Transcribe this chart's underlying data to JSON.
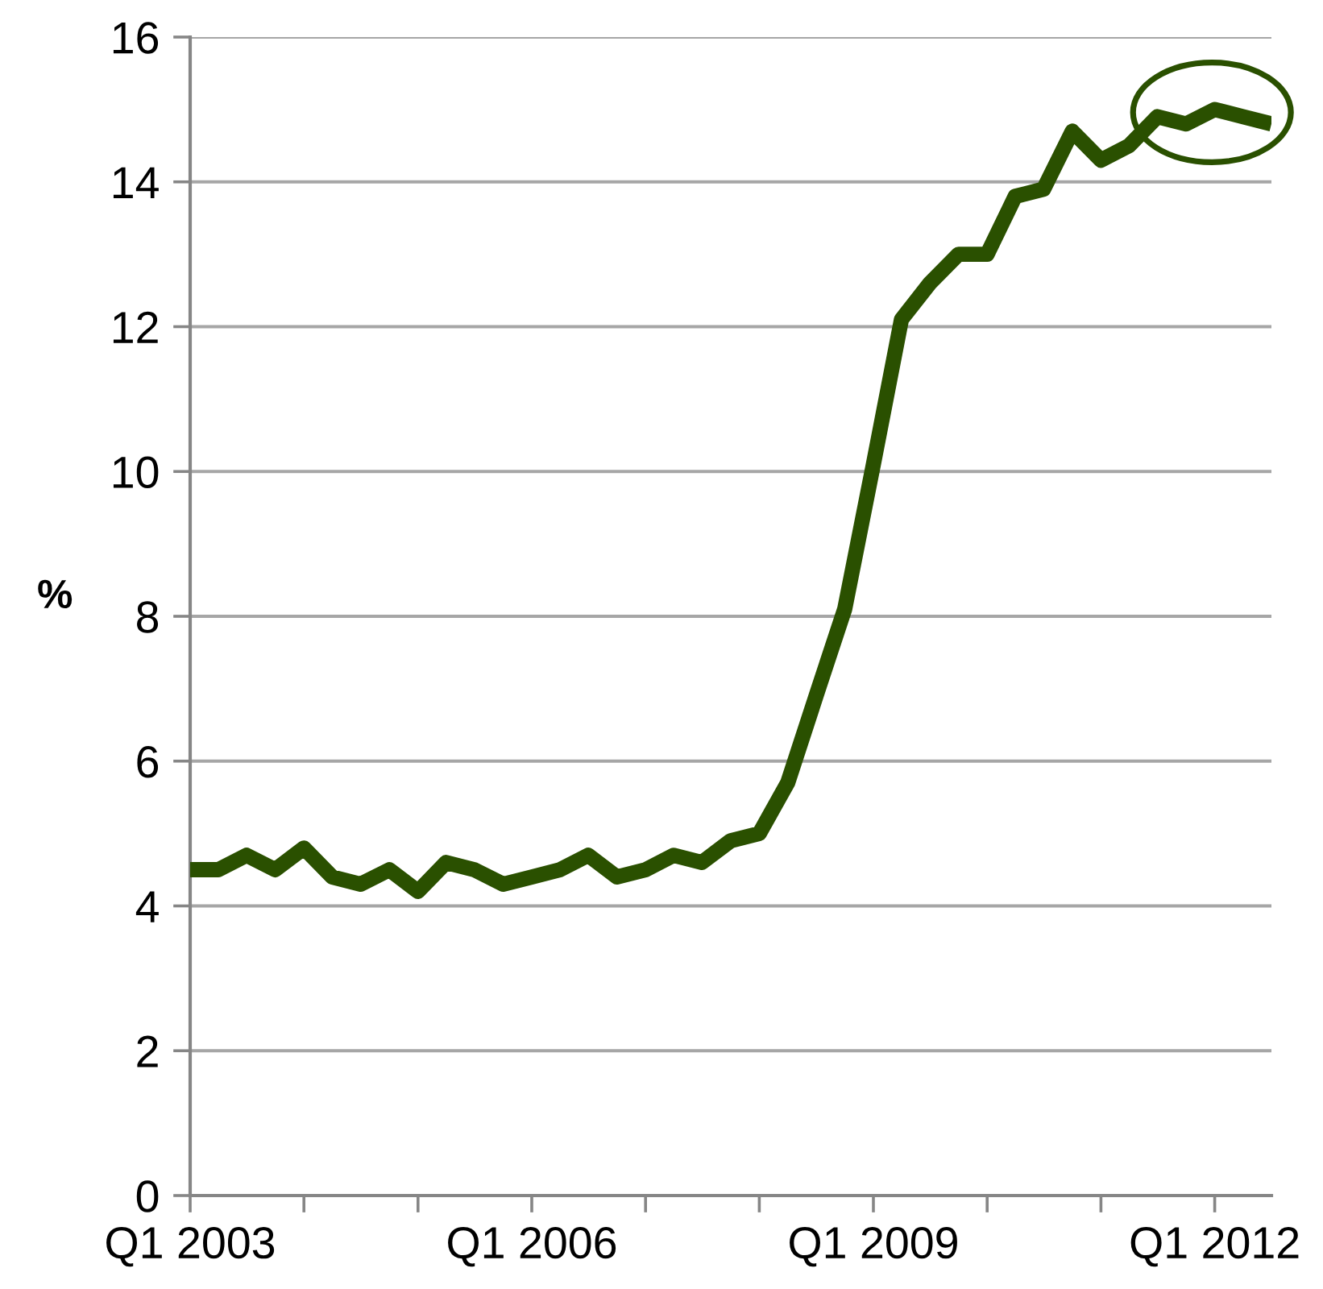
{
  "chart_data": {
    "type": "line",
    "ylabel": "%",
    "x": [
      "2003-01",
      "2003-04",
      "2003-07",
      "2003-10",
      "2004-01",
      "2004-04",
      "2004-07",
      "2004-10",
      "2005-01",
      "2005-04",
      "2005-07",
      "2005-10",
      "2006-01",
      "2006-04",
      "2006-07",
      "2006-10",
      "2007-01",
      "2007-04",
      "2007-07",
      "2007-10",
      "2008-01",
      "2008-04",
      "2008-07",
      "2008-10",
      "2009-01",
      "2009-04",
      "2009-07",
      "2009-10",
      "2010-01",
      "2010-04",
      "2010-07",
      "2010-10",
      "2011-01",
      "2011-04",
      "2011-07",
      "2011-10",
      "2012-01",
      "2012-04",
      "2012-07"
    ],
    "series": [
      {
        "color": "#2a5000",
        "values": [
          4.5,
          4.5,
          4.7,
          4.5,
          4.8,
          4.4,
          4.3,
          4.5,
          4.2,
          4.6,
          4.5,
          4.3,
          4.4,
          4.5,
          4.7,
          4.4,
          4.5,
          4.7,
          4.6,
          4.9,
          5.0,
          5.7,
          6.9,
          8.1,
          10.1,
          12.1,
          12.6,
          13.0,
          13.0,
          13.8,
          13.9,
          14.7,
          14.3,
          14.5,
          14.9,
          14.8,
          15.0,
          14.9,
          14.8
        ]
      }
    ],
    "xlim": [
      "2003-01",
      "2012-07"
    ],
    "xticks": [
      {
        "value": "2003-01",
        "label": "Q1 2003"
      },
      {
        "value": "2004-01",
        "label": null
      },
      {
        "value": "2005-01",
        "label": null
      },
      {
        "value": "2006-01",
        "label": "Q1 2006"
      },
      {
        "value": "2007-01",
        "label": null
      },
      {
        "value": "2008-01",
        "label": null
      },
      {
        "value": "2009-01",
        "label": "Q1 2009"
      },
      {
        "value": "2010-01",
        "label": null
      },
      {
        "value": "2011-01",
        "label": null
      },
      {
        "value": "2012-01",
        "label": "Q1 2012"
      }
    ],
    "ylim": [
      0,
      16
    ],
    "yticks": [
      0,
      2,
      4,
      6,
      8,
      10,
      12,
      14,
      16
    ],
    "grid": "y",
    "marker": "none",
    "line_style": "solid"
  }
}
